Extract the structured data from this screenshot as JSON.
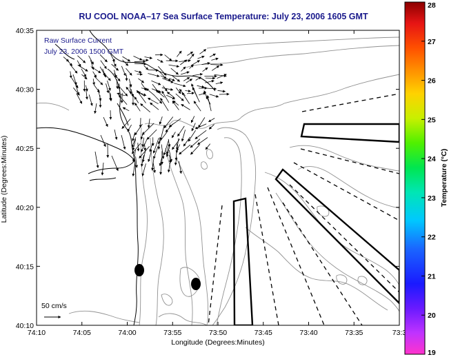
{
  "title": "RU COOL  NOAA–17  Sea Surface Temperature:  July 23, 2006 1605 GMT",
  "map_legend": {
    "line1": "Raw Surface Current",
    "line2": "July 23, 2006 1500 GMT"
  },
  "scale_label": "50 cm/s",
  "x_axis": {
    "label": "Longitude (Degrees:Minutes)",
    "ticks": [
      "74:10",
      "74:05",
      "74:00",
      "73:55",
      "73:50",
      "73:45",
      "73:40",
      "73:35",
      "73:3"
    ]
  },
  "y_axis": {
    "label": "Latitude (Degrees:Minutes)",
    "ticks": [
      "40:35",
      "40:30",
      "40:25",
      "40:20",
      "40:15",
      "40:10"
    ]
  },
  "colorbar": {
    "label": "Temperature (°C)",
    "ticks": [
      "28",
      "27",
      "26",
      "25",
      "24",
      "23",
      "22",
      "21",
      "20",
      "19"
    ],
    "min": 19,
    "max": 28
  },
  "colors": {
    "title": "#1a1a8c",
    "land_outline": "#000000",
    "contour": "#909090",
    "vectors": "#000000"
  }
}
